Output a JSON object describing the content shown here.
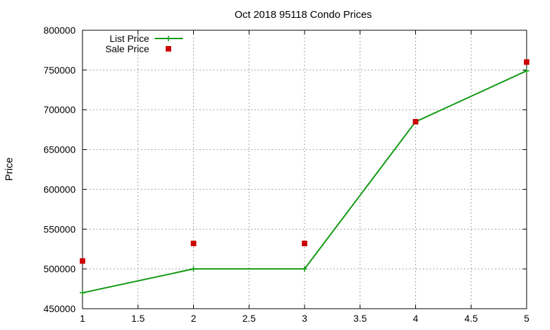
{
  "chart_data": {
    "type": "line",
    "title": "Oct 2018 95118 Condo Prices",
    "xlabel": "",
    "ylabel": "Price",
    "xlim": [
      1,
      5
    ],
    "ylim": [
      450000,
      800000
    ],
    "x_ticks": [
      "1",
      "1.5",
      "2",
      "2.5",
      "3",
      "3.5",
      "4",
      "4.5",
      "5"
    ],
    "y_ticks": [
      "450000",
      "500000",
      "550000",
      "600000",
      "650000",
      "700000",
      "750000",
      "800000"
    ],
    "grid": true,
    "legend_position": "top-left",
    "series": [
      {
        "name": "List Price",
        "type": "line",
        "marker": "plus",
        "color": "#119911",
        "x": [
          1,
          2,
          3,
          4,
          5
        ],
        "y": [
          470000,
          500000,
          500000,
          685000,
          749000
        ]
      },
      {
        "name": "Sale Price",
        "type": "scatter",
        "marker": "square",
        "color": "#cc0000",
        "x": [
          1,
          2,
          3,
          4,
          5
        ],
        "y": [
          510000,
          532000,
          532000,
          685000,
          760000
        ]
      }
    ]
  }
}
